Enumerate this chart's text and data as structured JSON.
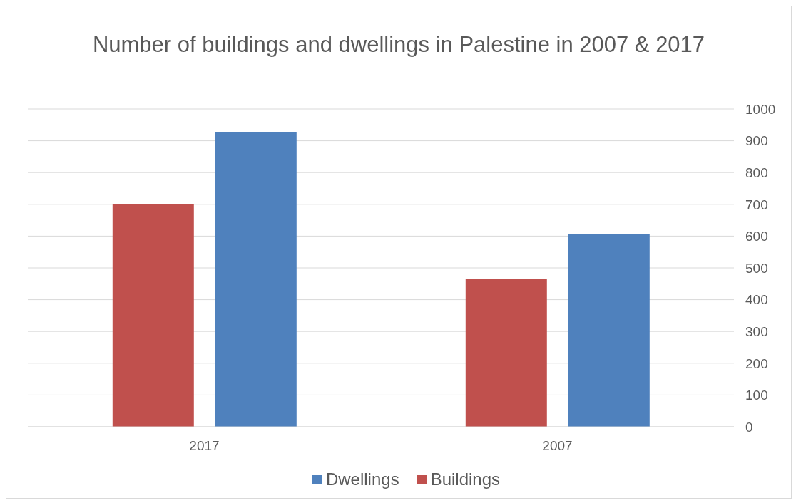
{
  "chart_data": {
    "type": "bar",
    "title": "Number of buildings and dwellings in Palestine in 2007 & 2017",
    "categories": [
      "2017",
      "2007"
    ],
    "series": [
      {
        "name": "Buildings",
        "color": "#c0504d",
        "values": [
          700,
          465
        ]
      },
      {
        "name": "Dwellings",
        "color": "#4f81bd",
        "values": [
          928,
          607
        ]
      }
    ],
    "ylim": [
      0,
      1000
    ],
    "yticks": [
      0,
      100,
      200,
      300,
      400,
      500,
      600,
      700,
      800,
      900,
      1000
    ],
    "grid": "y",
    "legend": "bottom"
  }
}
